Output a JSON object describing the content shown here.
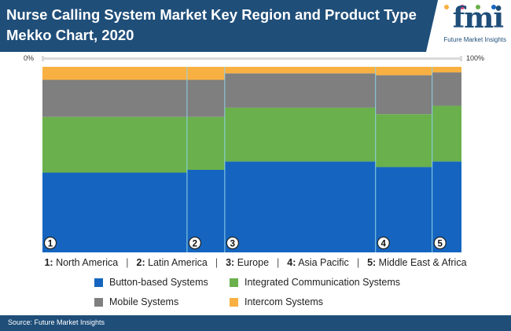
{
  "header": {
    "title": "Nurse Calling System Market Key Region and Product Type Mekko Chart, 2020",
    "logo_mark": "fmi",
    "logo_text": "Future Market Insights"
  },
  "axis": {
    "left_label": "0%",
    "right_label": "100%"
  },
  "colors": {
    "blue": "#1565c0",
    "green": "#6ab04c",
    "gray": "#7f7f7f",
    "orange": "#f9b042",
    "header": "#1f4e79"
  },
  "chart_data": {
    "type": "mekko",
    "title": "Nurse Calling System Market Key Region and Product Type Mekko Chart, 2020",
    "xlabel": "",
    "ylabel": "",
    "ylim": [
      0,
      100
    ],
    "categories": [
      {
        "key": "1",
        "label": "North America",
        "width_share": 34.5
      },
      {
        "key": "2",
        "label": "Latin America",
        "width_share": 9.0
      },
      {
        "key": "3",
        "label": "Europe",
        "width_share": 36.0
      },
      {
        "key": "4",
        "label": "Asia Pacific",
        "width_share": 13.5
      },
      {
        "key": "5",
        "label": "Middle East & Africa",
        "width_share": 7.0
      }
    ],
    "series": [
      {
        "name": "Button-based Systems",
        "color": "#1565c0",
        "values": [
          43,
          44.5,
          49,
          46,
          49
        ]
      },
      {
        "name": "Integrated Communication Systems",
        "color": "#6ab04c",
        "values": [
          30,
          28.5,
          29,
          28.5,
          30
        ]
      },
      {
        "name": "Mobile Systems",
        "color": "#7f7f7f",
        "values": [
          20,
          20,
          18.5,
          21,
          18
        ]
      },
      {
        "name": "Intercom Systems",
        "color": "#f9b042",
        "values": [
          7,
          7,
          3.5,
          4.5,
          3
        ]
      }
    ]
  },
  "legend": {
    "regions": [
      {
        "key": "1:",
        "label": "North America"
      },
      {
        "key": "2:",
        "label": "Latin America"
      },
      {
        "key": "3:",
        "label": "Europe"
      },
      {
        "key": "4:",
        "label": "Asia Pacific"
      },
      {
        "key": "5:",
        "label": "Middle East & Africa"
      }
    ],
    "separator": "|"
  },
  "footer": {
    "source": "Source: Future Market Insights"
  }
}
